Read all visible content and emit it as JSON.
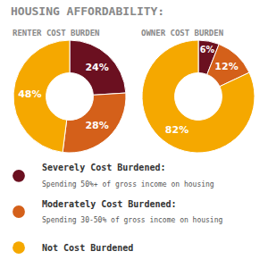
{
  "chart_data": [
    {
      "type": "pie",
      "title": "HOUSING AFFORDABILITY:",
      "subtitle": "RENTER COST BURDEN",
      "categories": [
        "Severely Cost Burdened:",
        "Moderately Cost Burdened:",
        "Not Cost Burdened"
      ],
      "values": [
        24,
        28,
        48
      ],
      "value_labels": [
        "24%",
        "28%",
        "48%"
      ],
      "colors": [
        "#6b1020",
        "#d4601a",
        "#f5a800"
      ],
      "data_labels": true,
      "legend": "bottom",
      "annotations": [
        "Spending 50%+ of gross income on housing",
        "Spending 30-50% of gross income on housing"
      ]
    },
    {
      "type": "pie",
      "subtitle": "OWNER COST BURDEN",
      "categories": [
        "Severely Cost Burdened:",
        "Moderately Cost Burdened:",
        "Not Cost Burdened"
      ],
      "values": [
        6,
        12,
        82
      ],
      "value_labels": [
        "6%",
        "12%",
        "82%"
      ],
      "colors": [
        "#6b1020",
        "#d4601a",
        "#f5a800"
      ],
      "data_labels": true
    }
  ]
}
